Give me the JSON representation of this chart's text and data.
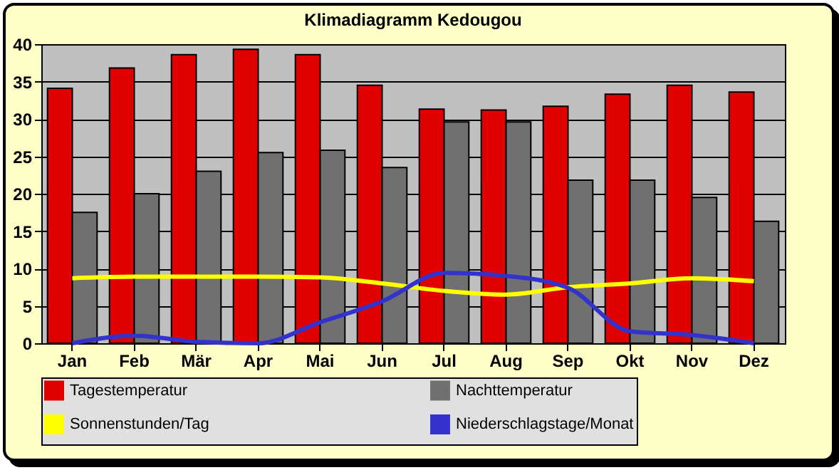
{
  "chart_data": {
    "type": "bar",
    "title": "Klimadiagramm Kedougou",
    "categories": [
      "Jan",
      "Feb",
      "Mär",
      "Apr",
      "Mai",
      "Jun",
      "Jul",
      "Aug",
      "Sep",
      "Okt",
      "Nov",
      "Dez"
    ],
    "series": [
      {
        "name": "Tagestemperatur",
        "color": "#e00000",
        "values": [
          34.1,
          36.8,
          38.6,
          39.3,
          38.6,
          34.5,
          31.3,
          31.2,
          31.7,
          33.3,
          34.5,
          33.6
        ]
      },
      {
        "name": "Nachttemperatur",
        "color": "#707070",
        "values": [
          17.5,
          20.0,
          23.0,
          25.5,
          25.8,
          23.5,
          29.6,
          29.6,
          21.8,
          21.8,
          19.5,
          16.3
        ]
      },
      {
        "name": "Sonnenstunden/Tag",
        "type": "line",
        "color": "#ffff00",
        "values": [
          8.7,
          8.9,
          8.9,
          8.9,
          8.8,
          8.0,
          7.0,
          6.5,
          7.5,
          8.0,
          8.7,
          8.3
        ]
      },
      {
        "name": "Niederschlagstage/Monat",
        "type": "line",
        "color": "#3333cc",
        "values": [
          0,
          1.0,
          0.2,
          0,
          2.8,
          5.6,
          9.4,
          9.0,
          7.4,
          1.6,
          1.1,
          0
        ]
      }
    ],
    "ylim": [
      0,
      40
    ],
    "yticks": [
      0,
      5,
      10,
      15,
      20,
      25,
      30,
      35,
      40
    ],
    "grid": "y",
    "legend": "bottom"
  }
}
